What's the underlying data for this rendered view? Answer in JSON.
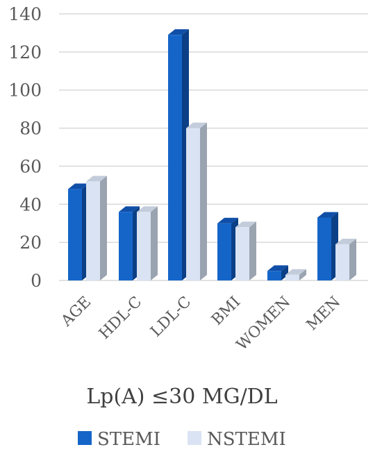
{
  "chart_data": {
    "type": "bar",
    "categories": [
      "AGE",
      "HDL-C",
      "LDL-C",
      "BMI",
      "WOMEN",
      "MEN"
    ],
    "series": [
      {
        "name": "STEMI",
        "values": [
          48,
          36,
          129,
          30,
          5,
          33
        ],
        "color": "#1565c9"
      },
      {
        "name": "NSTEMI",
        "values": [
          52,
          36,
          80,
          28,
          3,
          19
        ],
        "color": "#dae3f3"
      }
    ],
    "title": "",
    "xlabel": "Lp(A) ≤30 MG/DL",
    "ylabel": "",
    "ylim": [
      0,
      140
    ],
    "yticks": [
      "0",
      "20",
      "40",
      "60",
      "80",
      "100",
      "120",
      "140"
    ],
    "grid": true,
    "legend_position": "bottom",
    "style": "3d-column"
  }
}
